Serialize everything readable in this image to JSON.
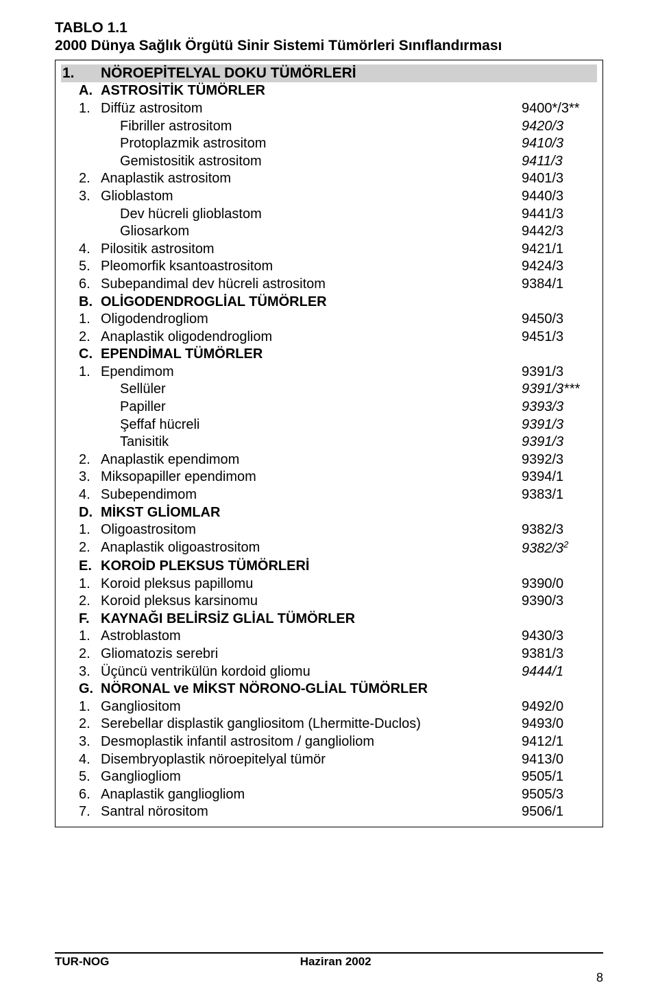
{
  "heading": {
    "title": "TABLO 1.1",
    "subtitle": "2000 Dünya Sağlık Örgütü Sinir Sistemi Tümörleri Sınıflandırması"
  },
  "section": {
    "num": "1.",
    "label": "NÖROEPİTELYAL DOKU TÜMÖRLERİ"
  },
  "groups": [
    {
      "letter": "A.",
      "title": "ASTROSİTİK TÜMÖRLER",
      "items": [
        {
          "n": "1.",
          "label": "Diffüz astrositom",
          "code": "9400*/3**",
          "subs": [
            {
              "label": "Fibriller astrositom",
              "code": "9420/3",
              "italic": true
            },
            {
              "label": "Protoplazmik astrositom",
              "code": "9410/3",
              "italic": true
            },
            {
              "label": "Gemistositik astrositom",
              "code": "9411/3",
              "italic": true
            }
          ]
        },
        {
          "n": "2.",
          "label": "Anaplastik astrositom",
          "code": "9401/3"
        },
        {
          "n": "3.",
          "label": "Glioblastom",
          "code": "9440/3",
          "subs": [
            {
              "label": "Dev hücreli glioblastom",
              "code": "9441/3",
              "italic": false
            },
            {
              "label": "Gliosarkom",
              "code": "9442/3",
              "italic": false
            }
          ]
        },
        {
          "n": "4.",
          "label": "Pilositik astrositom",
          "code": "9421/1"
        },
        {
          "n": "5.",
          "label": "Pleomorfik ksantoastrositom",
          "code": "9424/3"
        },
        {
          "n": "6.",
          "label": "Subepandimal dev hücreli astrositom",
          "code": "9384/1"
        }
      ]
    },
    {
      "letter": "B.",
      "title": "OLİGODENDROGLİAL TÜMÖRLER",
      "items": [
        {
          "n": "1.",
          "label": "Oligodendrogliom",
          "code": "9450/3"
        },
        {
          "n": "2.",
          "label": "Anaplastik oligodendrogliom",
          "code": "9451/3"
        }
      ]
    },
    {
      "letter": "C.",
      "title": "EPENDİMAL TÜMÖRLER",
      "items": [
        {
          "n": "1.",
          "label": "Ependimom",
          "code": "9391/3",
          "subs": [
            {
              "label": "Sellüler",
              "code": "9391/3***",
              "italic": true
            },
            {
              "label": "Papiller",
              "code": "9393/3",
              "italic": true
            },
            {
              "label": "Şeffaf hücreli",
              "code": "9391/3",
              "italic": true
            },
            {
              "label": "Tanisitik",
              "code": "9391/3",
              "italic": true
            }
          ]
        },
        {
          "n": "2.",
          "label": "Anaplastik ependimom",
          "code": "9392/3"
        },
        {
          "n": "3.",
          "label": "Miksopapiller ependimom",
          "code": "9394/1"
        },
        {
          "n": "4.",
          "label": "Subependimom",
          "code": "9383/1"
        }
      ]
    },
    {
      "letter": "D.",
      "title": "MİKST GLİOMLAR",
      "items": [
        {
          "n": "1.",
          "label": "Oligoastrositom",
          "code": "9382/3"
        },
        {
          "n": "2.",
          "label": "Anaplastik oligoastrositom",
          "code": "9382/3",
          "code_sup": "2",
          "code_italic": true
        }
      ]
    },
    {
      "letter": "E.",
      "title": "KOROİD PLEKSUS TÜMÖRLERİ",
      "items": [
        {
          "n": "1.",
          "label": "Koroid pleksus papillomu",
          "code": "9390/0"
        },
        {
          "n": "2.",
          "label": "Koroid pleksus karsinomu",
          "code": "9390/3"
        }
      ]
    },
    {
      "letter": "F.",
      "title": "KAYNAĞI BELİRSİZ GLİAL TÜMÖRLER",
      "items": [
        {
          "n": "1.",
          "label": "Astroblastom",
          "code": "9430/3"
        },
        {
          "n": "2.",
          "label": "Gliomatozis serebri",
          "code": "9381/3"
        },
        {
          "n": "3.",
          "label": "Üçüncü ventrikülün kordoid gliomu",
          "code": "9444/1",
          "code_italic": true
        }
      ]
    },
    {
      "letter": "G.",
      "title": "NÖRONAL ve MİKST NÖRONO-GLİAL TÜMÖRLER",
      "items": [
        {
          "n": "1.",
          "label": "Gangliositom",
          "code": "9492/0"
        },
        {
          "n": "2.",
          "label": "Serebellar displastik gangliositom (Lhermitte-Duclos)",
          "code": "9493/0"
        },
        {
          "n": "3.",
          "label": "Desmoplastik infantil astrositom / ganglioliom",
          "code": "9412/1"
        },
        {
          "n": "4.",
          "label": "Disembryoplastik nöroepitelyal tümör",
          "code": "9413/0"
        },
        {
          "n": "5.",
          "label": "Gangliogliom",
          "code": "9505/1"
        },
        {
          "n": "6.",
          "label": "Anaplastik gangliogliom",
          "code": "9505/3"
        },
        {
          "n": "7.",
          "label": "Santral nörositom",
          "code": "9506/1"
        }
      ]
    }
  ],
  "footer": {
    "left": "TUR-NOG",
    "center": "Haziran 2002"
  },
  "pagenum": "8"
}
